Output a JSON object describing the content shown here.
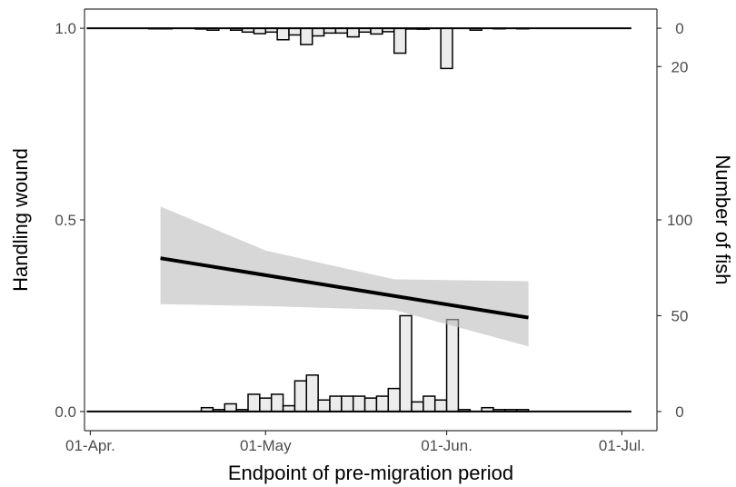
{
  "chart_data": {
    "type": "bar",
    "xlabel": "Endpoint of pre-migration period",
    "ylabel": "Handling wound",
    "y2label": "Number of fish",
    "x_ticks": [
      {
        "date": "2020-04-01",
        "label": "01-Apr."
      },
      {
        "date": "2020-05-01",
        "label": "01-May"
      },
      {
        "date": "2020-06-01",
        "label": "01-Jun."
      },
      {
        "date": "2020-07-01",
        "label": "01-Jul."
      }
    ],
    "y_ticks": [
      {
        "value": 0.0,
        "label": "0.0"
      },
      {
        "value": 0.5,
        "label": "0.5"
      },
      {
        "value": 1.0,
        "label": "1.0"
      }
    ],
    "y2_ticks_top": [
      {
        "value": 0,
        "label": "0"
      },
      {
        "value": 20,
        "label": "20"
      }
    ],
    "y2_ticks_bottom": [
      {
        "value": 0,
        "label": "0"
      },
      {
        "value": 50,
        "label": "50"
      },
      {
        "value": 100,
        "label": "100"
      }
    ],
    "xlim": [
      "2020-03-31",
      "2020-07-07"
    ],
    "ylim": [
      -0.05,
      1.05
    ],
    "bin_days": 2,
    "bars_bottom": {
      "name": "Handling wound = 0",
      "bin_starts": [
        "2020-04-20",
        "2020-04-22",
        "2020-04-24",
        "2020-04-26",
        "2020-04-28",
        "2020-04-30",
        "2020-05-02",
        "2020-05-04",
        "2020-05-06",
        "2020-05-08",
        "2020-05-10",
        "2020-05-12",
        "2020-05-14",
        "2020-05-16",
        "2020-05-18",
        "2020-05-20",
        "2020-05-22",
        "2020-05-24",
        "2020-05-26",
        "2020-05-28",
        "2020-05-30",
        "2020-06-01",
        "2020-06-03",
        "2020-06-05",
        "2020-06-07",
        "2020-06-09",
        "2020-06-11",
        "2020-06-13"
      ],
      "values": [
        2,
        1,
        4,
        1,
        9,
        7,
        9,
        3,
        16,
        19,
        6,
        8,
        8,
        8,
        7,
        8,
        12,
        50,
        5,
        8,
        6,
        48,
        1,
        0,
        2,
        1,
        1,
        1
      ]
    },
    "bars_top": {
      "name": "Handling wound = 1",
      "bin_starts": [
        "2020-04-11",
        "2020-04-13",
        "2020-04-19",
        "2020-04-21",
        "2020-04-25",
        "2020-04-27",
        "2020-04-29",
        "2020-05-01",
        "2020-05-03",
        "2020-05-05",
        "2020-05-07",
        "2020-05-09",
        "2020-05-11",
        "2020-05-13",
        "2020-05-15",
        "2020-05-17",
        "2020-05-19",
        "2020-05-21",
        "2020-05-23",
        "2020-05-25",
        "2020-05-27",
        "2020-05-29",
        "2020-05-31",
        "2020-06-05",
        "2020-06-09",
        "2020-06-13"
      ],
      "values": [
        0.3,
        0.3,
        0.4,
        1,
        1,
        2,
        2.8,
        2,
        6,
        3.5,
        8.5,
        4,
        2.5,
        2.5,
        4.5,
        2,
        3,
        1.8,
        13,
        0.4,
        0.5,
        0,
        21,
        1,
        0.3,
        0.3
      ]
    },
    "trend": {
      "x": [
        "2020-04-13",
        "2020-06-15"
      ],
      "y": [
        0.4,
        0.245
      ]
    },
    "ci_band": {
      "x": [
        "2020-04-13",
        "2020-05-01",
        "2020-05-23",
        "2020-06-15"
      ],
      "lower": [
        0.28,
        0.275,
        0.265,
        0.17
      ],
      "upper": [
        0.535,
        0.42,
        0.345,
        0.34
      ]
    },
    "grid": false,
    "legend": "none"
  }
}
